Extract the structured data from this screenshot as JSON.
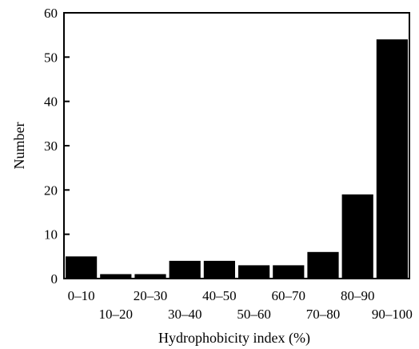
{
  "chart_data": {
    "type": "bar",
    "title": "",
    "xlabel": "Hydrophobicity index (%)",
    "ylabel": "Number",
    "categories": [
      "0–10",
      "10–20",
      "20–30",
      "30–40",
      "40–50",
      "50–60",
      "60–70",
      "70–80",
      "80–90",
      "90–100"
    ],
    "values": [
      5,
      1,
      1,
      4,
      4,
      3,
      3,
      6,
      19,
      54
    ],
    "ylim": [
      0,
      60
    ],
    "yticks": [
      "0",
      "10",
      "20",
      "30",
      "40",
      "50",
      "60"
    ],
    "grid": false,
    "legend": "none",
    "bar_color": "#000000"
  }
}
